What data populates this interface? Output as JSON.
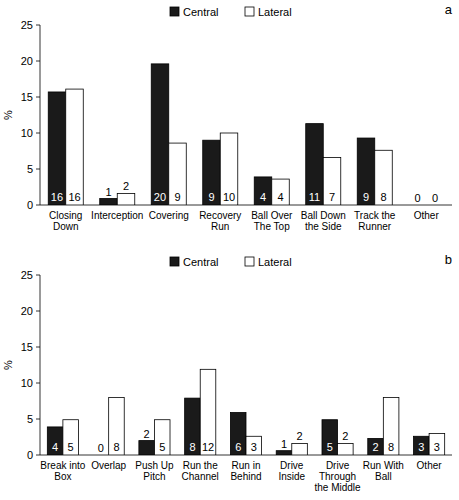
{
  "chart_data": [
    {
      "type": "bar",
      "title": "a",
      "categories": [
        "Closing Down",
        "Interception",
        "Covering",
        "Recovery Run",
        "Ball Over The Top",
        "Ball Down the Side",
        "Track the Runner",
        "Other"
      ],
      "series": [
        {
          "name": "Central",
          "color": "#1a1a1a",
          "values": [
            15.7,
            0.9,
            19.6,
            9,
            3.9,
            11.3,
            9.3,
            0
          ],
          "value_labels": [
            "16",
            "1",
            "20",
            "9",
            "4",
            "11",
            "9",
            "0"
          ]
        },
        {
          "name": "Lateral",
          "color": "#ffffff",
          "values": [
            16.1,
            1.6,
            8.6,
            10,
            3.6,
            6.6,
            7.6,
            0
          ],
          "value_labels": [
            "16",
            "2",
            "9",
            "10",
            "4",
            "7",
            "8",
            "0"
          ]
        }
      ],
      "y_label": "%",
      "ylim": [
        0,
        25
      ],
      "yticks": [
        0,
        5,
        10,
        15,
        20,
        25
      ],
      "grid": false,
      "legend": "top",
      "data_labels": true
    },
    {
      "type": "bar",
      "title": "b",
      "categories": [
        "Break into Box",
        "Overlap",
        "Push Up Pitch",
        "Run the Channel",
        "Run in Behind",
        "Drive Inside",
        "Drive Through the Middle",
        "Run With Ball",
        "Other"
      ],
      "series": [
        {
          "name": "Central",
          "color": "#1a1a1a",
          "values": [
            3.9,
            0,
            2,
            7.9,
            5.9,
            0.6,
            4.9,
            2.3,
            2.6
          ],
          "value_labels": [
            "4",
            "0",
            "2",
            "8",
            "6",
            "1",
            "5",
            "2",
            "3"
          ]
        },
        {
          "name": "Lateral",
          "color": "#ffffff",
          "values": [
            4.9,
            8,
            4.9,
            11.9,
            2.6,
            1.6,
            1.6,
            8,
            3
          ],
          "value_labels": [
            "5",
            "8",
            "5",
            "12",
            "3",
            "2",
            "2",
            "8",
            "3"
          ]
        }
      ],
      "y_label": "%",
      "ylim": [
        0,
        25
      ],
      "yticks": [
        0,
        5,
        10,
        15,
        20,
        25
      ],
      "grid": false,
      "legend": "top",
      "data_labels": true
    }
  ]
}
